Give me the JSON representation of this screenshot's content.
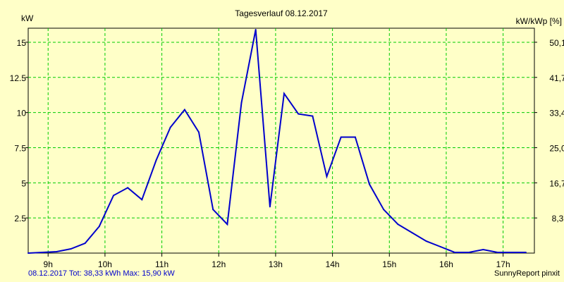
{
  "chart_data": {
    "type": "line",
    "title": "Tagesverlauf 08.12.2017",
    "ylabel_left": "kW",
    "ylabel_right": "kW/kWp [%]",
    "xlim": [
      8.65,
      17.55
    ],
    "ylim": [
      0,
      16
    ],
    "x_ticks": [
      9,
      10,
      11,
      12,
      13,
      14,
      15,
      16,
      17
    ],
    "x_tick_labels": [
      "9h",
      "10h",
      "11h",
      "12h",
      "13h",
      "14h",
      "15h",
      "16h",
      "17h"
    ],
    "y_ticks": [
      2.5,
      5,
      7.5,
      10,
      12.5,
      15
    ],
    "y_tick_labels": [
      "2.5",
      "5",
      "7.5",
      "10",
      "12.5",
      "15"
    ],
    "right_tick_labels": [
      "8,3",
      "16,7",
      "25,0",
      "33,4",
      "41,7",
      "50,1"
    ],
    "grid": true,
    "colors": {
      "background": "#ffffc8",
      "grid": "#00cc00",
      "line": "#0000cc"
    },
    "series": [
      {
        "name": "kW",
        "x": [
          8.65,
          8.9,
          9.15,
          9.4,
          9.65,
          9.9,
          10.15,
          10.4,
          10.65,
          10.9,
          11.15,
          11.4,
          11.65,
          11.9,
          12.15,
          12.4,
          12.65,
          12.9,
          13.15,
          13.4,
          13.65,
          13.9,
          14.15,
          14.4,
          14.65,
          14.9,
          15.15,
          15.4,
          15.65,
          15.9,
          16.15,
          16.4,
          16.65,
          16.9,
          17.15,
          17.4
        ],
        "y": [
          0.0,
          0.05,
          0.1,
          0.3,
          0.7,
          1.9,
          4.1,
          4.65,
          3.8,
          6.6,
          8.95,
          10.2,
          8.6,
          3.1,
          2.05,
          10.7,
          15.9,
          3.3,
          11.35,
          9.9,
          9.75,
          5.45,
          8.25,
          8.25,
          4.9,
          3.1,
          2.05,
          1.45,
          0.85,
          0.45,
          0.05,
          0.05,
          0.25,
          0.05,
          0.05,
          0.05
        ]
      }
    ]
  },
  "footer": {
    "left": "08.12.2017 Tot: 38,33 kWh Max: 15,90 kW",
    "right": "SunnyReport pinxit"
  }
}
